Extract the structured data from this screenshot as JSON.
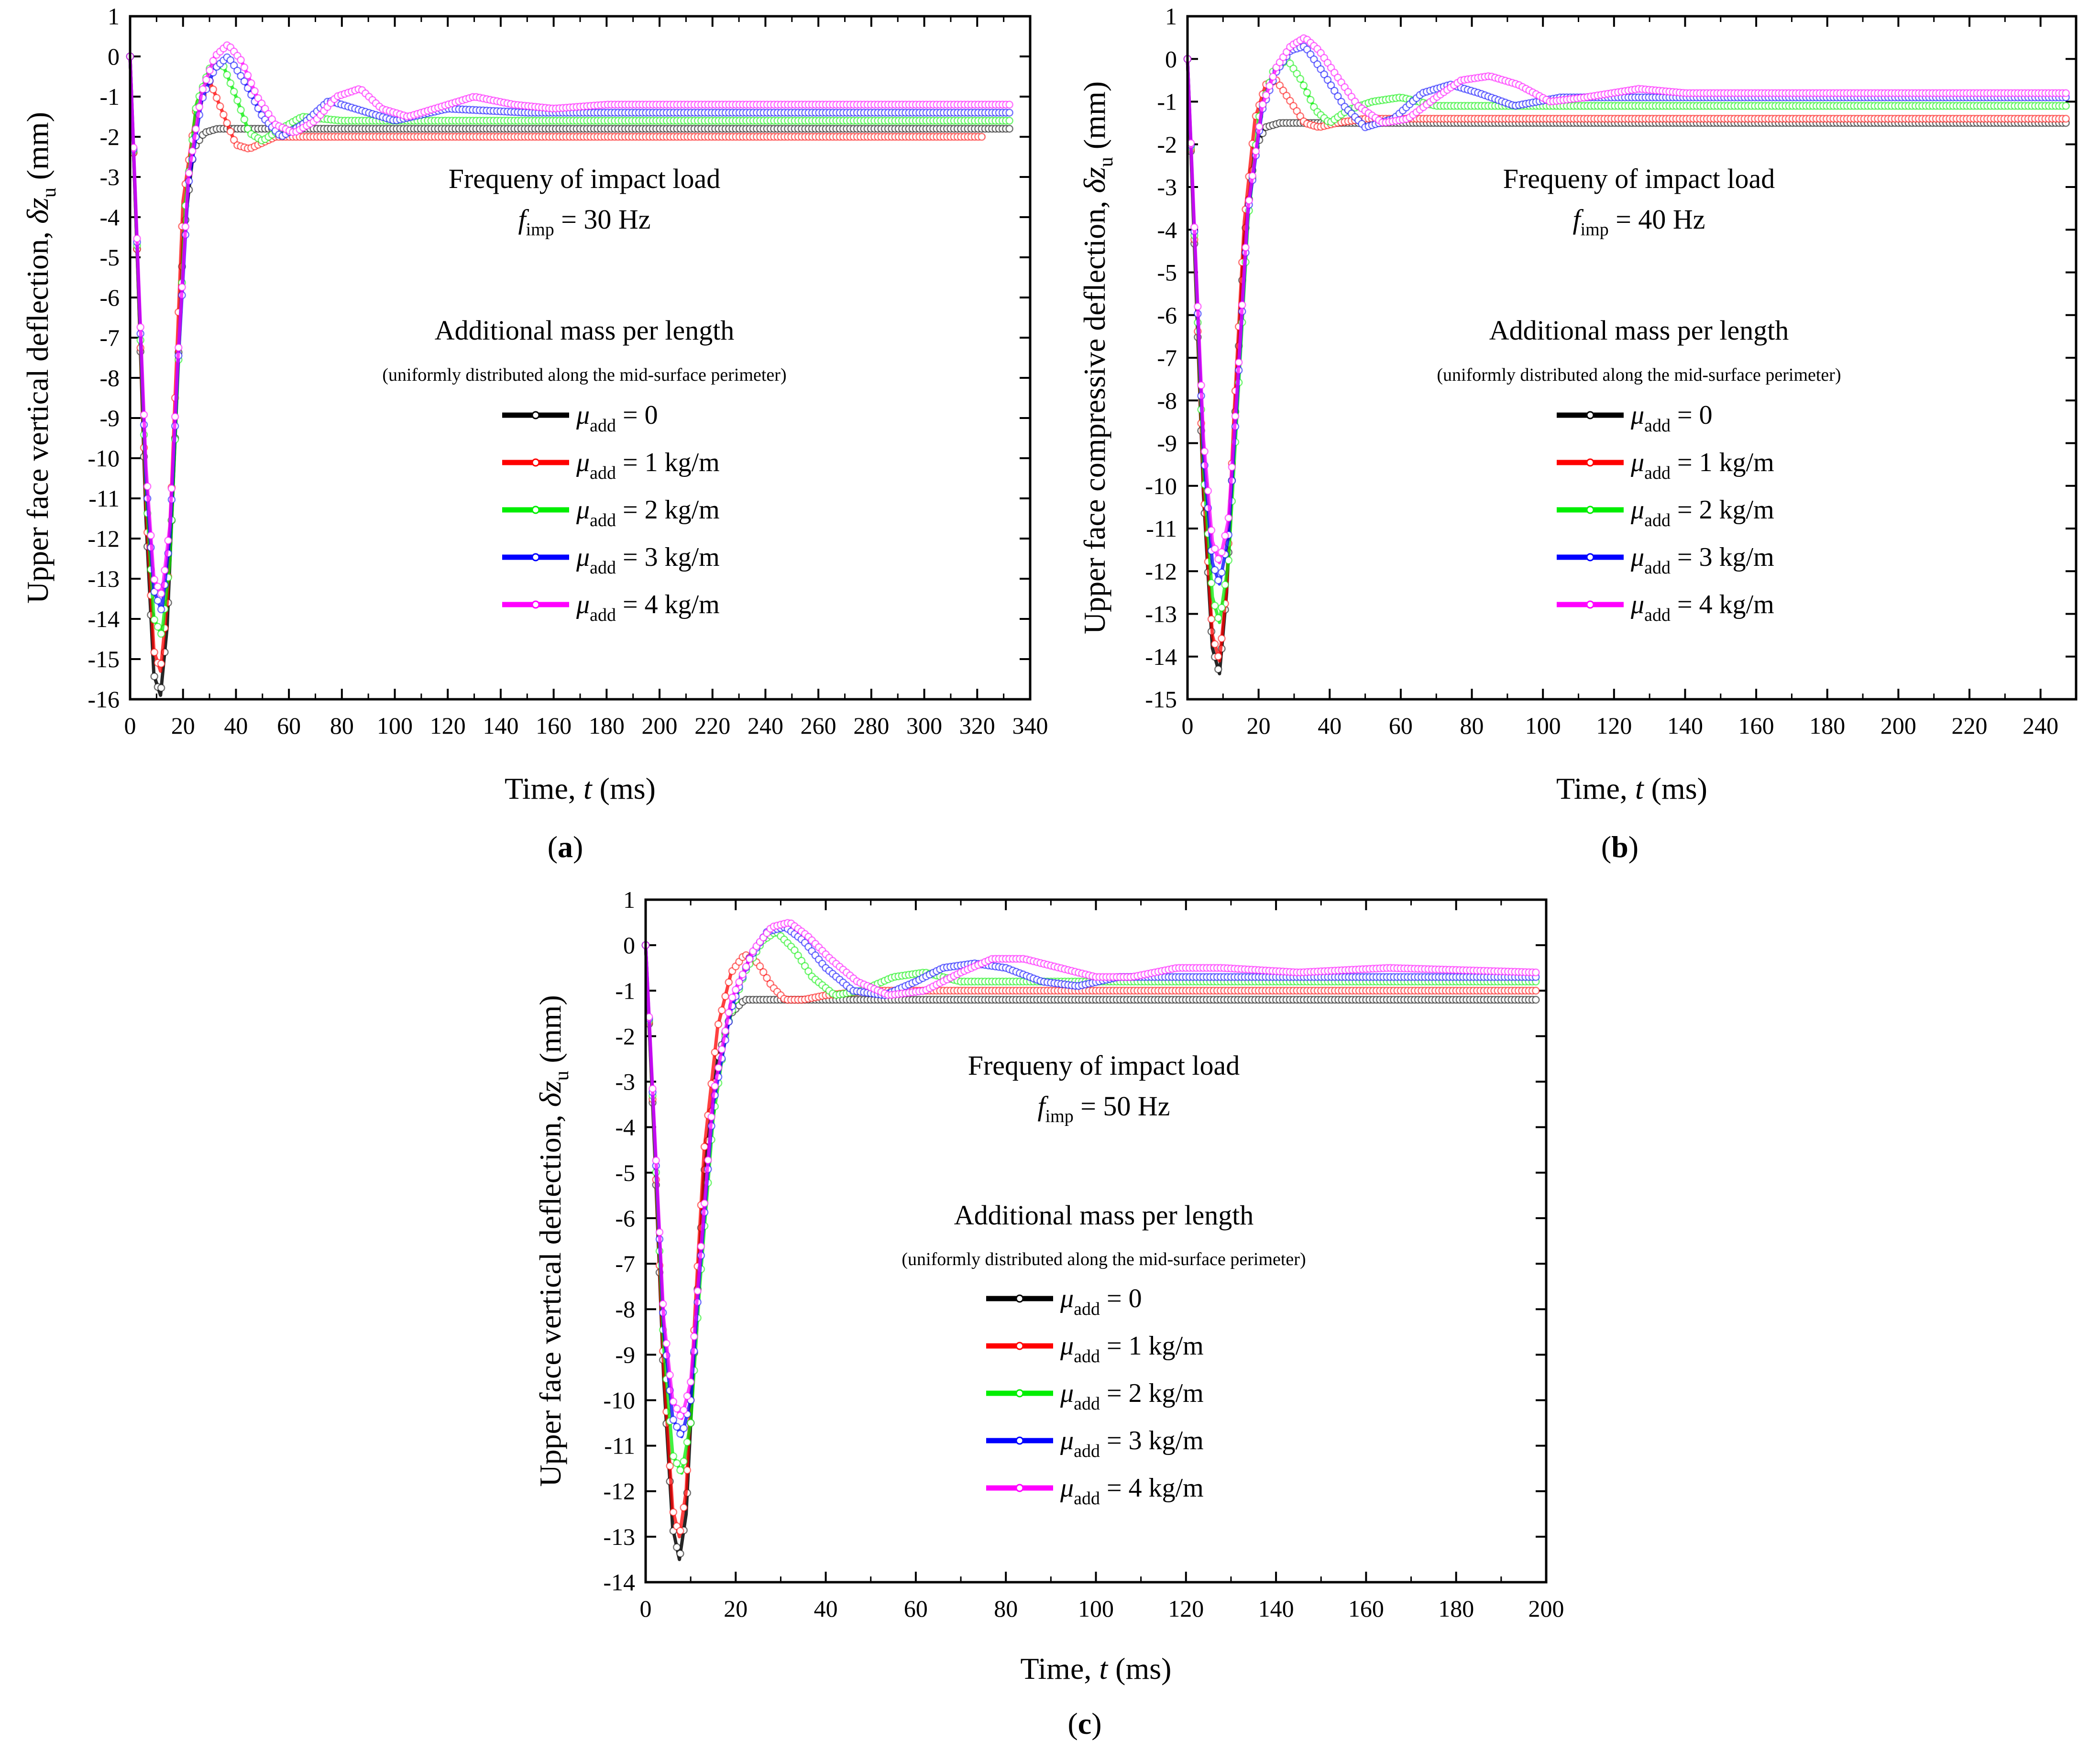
{
  "colors": {
    "mu0": "#000000",
    "mu1": "#ff0000",
    "mu2": "#00ee00",
    "mu3": "#0000ff",
    "mu4": "#ff00ff"
  },
  "chart_data": [
    {
      "type": "line",
      "panel_label": "(a)",
      "label_letter": "a",
      "title_line1": "Frequeny of impact load",
      "freq_prefix": "f",
      "freq_sub": "imp",
      "freq_value": "= 30 Hz",
      "legend_title": "Additional mass per length",
      "legend_subtitle": "(uniformly distributed along the mid-surface perimeter)",
      "xlabel_pre": "Time,",
      "xlabel_var": "t",
      "xlabel_unit": "(ms)",
      "ylabel_pre": "Upper face vertical deflection,",
      "ylabel_var": "δz",
      "ylabel_sub": "u",
      "ylabel_unit": "(mm)",
      "xlim": [
        0,
        340
      ],
      "ylim": [
        -16,
        1
      ],
      "xticks": [
        0,
        20,
        40,
        60,
        80,
        100,
        120,
        140,
        160,
        180,
        200,
        220,
        240,
        260,
        280,
        300,
        320,
        340
      ],
      "yticks": [
        1,
        0,
        -1,
        -2,
        -3,
        -4,
        -5,
        -6,
        -7,
        -8,
        -9,
        -10,
        -11,
        -12,
        -13,
        -14,
        -15,
        -16
      ],
      "series": [
        {
          "name": "μadd = 0",
          "mu_sym": "μ",
          "mu_sub": "add",
          "mu_text": "= 0",
          "x": [
            0,
            3,
            6,
            9,
            11.5,
            14,
            17,
            20,
            24,
            28,
            33,
            40,
            60,
            100,
            200,
            333
          ],
          "y": [
            0,
            -5.5,
            -11.5,
            -15.4,
            -15.9,
            -14.2,
            -9.5,
            -4.6,
            -2.3,
            -1.9,
            -1.8,
            -1.8,
            -1.8,
            -1.8,
            -1.8,
            -1.8
          ]
        },
        {
          "name": "μadd = 1 kg/m",
          "mu_sym": "μ",
          "mu_sub": "add",
          "mu_text": "= 1 kg/m",
          "x": [
            0,
            3,
            6,
            9,
            11.5,
            14,
            17,
            20,
            25,
            30,
            35,
            40,
            45,
            55,
            70,
            100,
            200,
            323
          ],
          "y": [
            0,
            -5.5,
            -11.2,
            -14.8,
            -15.3,
            -13.6,
            -8.5,
            -3.6,
            -1.3,
            -0.6,
            -1.4,
            -2.2,
            -2.3,
            -2.0,
            -2.0,
            -2.0,
            -2.0,
            -2.0
          ]
        },
        {
          "name": "μadd = 2 kg/m",
          "mu_sym": "μ",
          "mu_sub": "add",
          "mu_text": "= 2 kg/m",
          "x": [
            0,
            3,
            6,
            9,
            12,
            15,
            18,
            21,
            25,
            30,
            35,
            40,
            45,
            50,
            57,
            65,
            80,
            100,
            200,
            333
          ],
          "y": [
            0,
            -5.4,
            -10.8,
            -14.0,
            -14.4,
            -12.6,
            -8.0,
            -3.6,
            -1.2,
            -0.3,
            -0.2,
            -1.0,
            -1.9,
            -2.1,
            -1.8,
            -1.5,
            -1.6,
            -1.6,
            -1.6,
            -1.6
          ]
        },
        {
          "name": "μadd = 3 kg/m",
          "mu_sym": "μ",
          "mu_sub": "add",
          "mu_text": "= 3 kg/m",
          "x": [
            0,
            3,
            6,
            9,
            12,
            15,
            18,
            22,
            27,
            32,
            37,
            43,
            50,
            57,
            65,
            75,
            85,
            100,
            120,
            150,
            200,
            333
          ],
          "y": [
            0,
            -5.3,
            -10.5,
            -13.3,
            -13.8,
            -12.0,
            -7.8,
            -3.2,
            -1.1,
            -0.3,
            0.0,
            -0.6,
            -1.5,
            -2.0,
            -1.7,
            -1.1,
            -1.3,
            -1.6,
            -1.3,
            -1.4,
            -1.4,
            -1.4
          ]
        },
        {
          "name": "μadd = 4 kg/m",
          "mu_sym": "μ",
          "mu_sub": "add",
          "mu_text": "= 4 kg/m",
          "x": [
            0,
            3,
            6,
            9,
            12,
            15,
            18,
            22,
            27,
            32,
            37,
            42,
            48,
            55,
            62,
            70,
            78,
            87,
            95,
            105,
            115,
            130,
            145,
            160,
            180,
            200,
            333
          ],
          "y": [
            0,
            -5.2,
            -10.2,
            -13.0,
            -13.4,
            -11.7,
            -7.6,
            -3.0,
            -0.9,
            0.0,
            0.3,
            -0.1,
            -1.0,
            -1.7,
            -1.9,
            -1.6,
            -1.0,
            -0.8,
            -1.3,
            -1.5,
            -1.3,
            -1.0,
            -1.2,
            -1.3,
            -1.2,
            -1.2,
            -1.2
          ]
        }
      ]
    },
    {
      "type": "line",
      "panel_label": "(b)",
      "label_letter": "b",
      "title_line1": "Frequeny of impact load",
      "freq_prefix": "f",
      "freq_sub": "imp",
      "freq_value": "= 40 Hz",
      "legend_title": "Additional mass per length",
      "legend_subtitle": "(uniformly distributed along the mid-surface perimeter)",
      "xlabel_pre": "Time,",
      "xlabel_var": "t",
      "xlabel_unit": "(ms)",
      "ylabel_pre": "Upper face compressive deflection,",
      "ylabel_var": "δz",
      "ylabel_sub": "u",
      "ylabel_unit": "(mm)",
      "xlim": [
        0,
        250
      ],
      "ylim": [
        -15,
        1
      ],
      "xticks": [
        0,
        20,
        40,
        60,
        80,
        100,
        120,
        140,
        160,
        180,
        200,
        220,
        240
      ],
      "yticks": [
        1,
        0,
        -1,
        -2,
        -3,
        -4,
        -5,
        -6,
        -7,
        -8,
        -9,
        -10,
        -11,
        -12,
        -13,
        -14,
        -15
      ],
      "series": [
        {
          "name": "μadd = 0",
          "mu_sym": "μ",
          "mu_sub": "add",
          "mu_text": "= 0",
          "x": [
            0,
            2,
            4.5,
            7,
            9,
            11,
            13,
            16,
            19,
            22,
            26,
            30,
            40,
            100,
            200,
            248
          ],
          "y": [
            0,
            -4.5,
            -10.2,
            -13.8,
            -14.4,
            -12.5,
            -9.0,
            -4.2,
            -2.1,
            -1.6,
            -1.5,
            -1.5,
            -1.5,
            -1.5,
            -1.5,
            -1.5
          ]
        },
        {
          "name": "μadd = 1 kg/m",
          "mu_sym": "μ",
          "mu_sub": "add",
          "mu_text": "= 1 kg/m",
          "x": [
            0,
            2,
            4.5,
            7,
            9,
            11,
            13,
            16,
            19,
            22,
            25,
            29,
            33,
            37,
            42,
            50,
            70,
            100,
            200,
            248
          ],
          "y": [
            0,
            -4.4,
            -10.0,
            -13.5,
            -14.1,
            -12.4,
            -8.5,
            -3.8,
            -1.4,
            -0.6,
            -0.5,
            -1.0,
            -1.5,
            -1.6,
            -1.5,
            -1.4,
            -1.4,
            -1.4,
            -1.4,
            -1.4
          ]
        },
        {
          "name": "μadd = 2 kg/m",
          "mu_sym": "μ",
          "mu_sub": "add",
          "mu_text": "= 2 kg/m",
          "x": [
            0,
            2,
            4.5,
            7,
            9,
            11.5,
            14,
            17,
            20,
            24,
            28,
            32,
            36,
            40,
            45,
            52,
            60,
            70,
            85,
            100,
            200,
            248
          ],
          "y": [
            0,
            -4.3,
            -9.6,
            -12.6,
            -13.2,
            -11.8,
            -8.2,
            -3.8,
            -1.4,
            -0.3,
            0.0,
            -0.5,
            -1.2,
            -1.5,
            -1.2,
            -1.0,
            -0.9,
            -1.1,
            -1.1,
            -1.1,
            -1.1,
            -1.1
          ]
        },
        {
          "name": "μadd = 3 kg/m",
          "mu_sym": "μ",
          "mu_sub": "add",
          "mu_text": "= 3 kg/m",
          "x": [
            0,
            2,
            4.5,
            7,
            9,
            11.5,
            14,
            17,
            21,
            25,
            29,
            33,
            38,
            44,
            50,
            58,
            66,
            74,
            82,
            92,
            105,
            120,
            150,
            200,
            248
          ],
          "y": [
            0,
            -4.2,
            -9.2,
            -11.8,
            -12.3,
            -11.2,
            -7.9,
            -3.6,
            -1.2,
            -0.3,
            0.2,
            0.3,
            -0.3,
            -1.1,
            -1.6,
            -1.4,
            -0.8,
            -0.6,
            -0.8,
            -1.1,
            -0.9,
            -0.9,
            -0.9,
            -0.9,
            -0.9
          ]
        },
        {
          "name": "μadd = 4 kg/m",
          "mu_sym": "μ",
          "mu_sub": "add",
          "mu_text": "= 4 kg/m",
          "x": [
            0,
            2,
            4.5,
            7,
            9,
            11.5,
            14,
            17,
            21,
            25,
            29,
            33,
            37,
            42,
            48,
            55,
            62,
            70,
            77,
            85,
            93,
            102,
            112,
            127,
            140,
            160,
            200,
            248
          ],
          "y": [
            0,
            -4.1,
            -8.9,
            -11.3,
            -11.8,
            -10.8,
            -7.7,
            -3.5,
            -1.1,
            -0.2,
            0.3,
            0.5,
            0.2,
            -0.4,
            -1.1,
            -1.5,
            -1.4,
            -0.9,
            -0.5,
            -0.4,
            -0.6,
            -1.0,
            -0.9,
            -0.7,
            -0.8,
            -0.8,
            -0.8,
            -0.8
          ]
        }
      ]
    },
    {
      "type": "line",
      "panel_label": "(c)",
      "label_letter": "c",
      "title_line1": "Frequeny of impact load",
      "freq_prefix": "f",
      "freq_sub": "imp",
      "freq_value": "= 50 Hz",
      "legend_title": "Additional mass per length",
      "legend_subtitle": "(uniformly distributed along the mid-surface perimeter)",
      "xlabel_pre": "Time,",
      "xlabel_var": "t",
      "xlabel_unit": "(ms)",
      "ylabel_pre": "Upper face vertical deflection,",
      "ylabel_var": "δz",
      "ylabel_sub": "u",
      "ylabel_unit": "(mm)",
      "xlim": [
        0,
        200
      ],
      "ylim": [
        -14,
        1
      ],
      "xticks": [
        0,
        20,
        40,
        60,
        80,
        100,
        120,
        140,
        160,
        180,
        200
      ],
      "yticks": [
        1,
        0,
        -1,
        -2,
        -3,
        -4,
        -5,
        -6,
        -7,
        -8,
        -9,
        -10,
        -11,
        -12,
        -13,
        -14
      ],
      "series": [
        {
          "name": "μadd = 0",
          "mu_sym": "μ",
          "mu_sub": "add",
          "mu_text": "= 0",
          "x": [
            0,
            2,
            4,
            6,
            7.5,
            9,
            11,
            13,
            16,
            19,
            22,
            26,
            30,
            50,
            100,
            198
          ],
          "y": [
            0,
            -4.5,
            -9.5,
            -12.8,
            -13.5,
            -12.5,
            -8.5,
            -5.0,
            -2.5,
            -1.5,
            -1.2,
            -1.2,
            -1.2,
            -1.2,
            -1.2,
            -1.2
          ]
        },
        {
          "name": "μadd = 1 kg/m",
          "mu_sym": "μ",
          "mu_sub": "add",
          "mu_text": "= 1 kg/m",
          "x": [
            0,
            2,
            4,
            6,
            7.5,
            9,
            11,
            13,
            16,
            19,
            22,
            25,
            28,
            31,
            35,
            40,
            50,
            100,
            198
          ],
          "y": [
            0,
            -4.4,
            -9.3,
            -12.4,
            -13.0,
            -12.0,
            -8.0,
            -4.5,
            -1.8,
            -0.6,
            -0.2,
            -0.4,
            -0.9,
            -1.2,
            -1.2,
            -1.1,
            -1.0,
            -1.0,
            -1.0
          ]
        },
        {
          "name": "μadd = 2 kg/m",
          "mu_sym": "μ",
          "mu_sub": "add",
          "mu_text": "= 2 kg/m",
          "x": [
            0,
            2,
            4,
            6,
            8,
            10,
            12,
            15,
            18,
            22,
            26,
            29,
            33,
            37,
            42,
            48,
            55,
            62,
            70,
            85,
            100,
            198
          ],
          "y": [
            0,
            -4.3,
            -8.8,
            -11.2,
            -11.6,
            -10.5,
            -7.5,
            -3.8,
            -1.8,
            -0.6,
            0.1,
            0.3,
            -0.1,
            -0.7,
            -1.1,
            -1.0,
            -0.7,
            -0.6,
            -0.8,
            -0.8,
            -0.8,
            -0.8
          ]
        },
        {
          "name": "μadd = 3 kg/m",
          "mu_sym": "μ",
          "mu_sub": "add",
          "mu_text": "= 3 kg/m",
          "x": [
            0,
            2,
            4,
            6,
            8,
            10,
            12,
            15,
            19,
            23,
            27,
            31,
            35,
            40,
            46,
            53,
            60,
            66,
            73,
            80,
            88,
            96,
            105,
            120,
            150,
            198
          ],
          "y": [
            0,
            -4.2,
            -8.4,
            -10.4,
            -10.8,
            -10.0,
            -7.2,
            -3.5,
            -1.4,
            -0.3,
            0.3,
            0.4,
            0.1,
            -0.5,
            -1.0,
            -1.1,
            -0.8,
            -0.5,
            -0.4,
            -0.5,
            -0.8,
            -0.9,
            -0.7,
            -0.7,
            -0.7,
            -0.7
          ]
        },
        {
          "name": "μadd = 4 kg/m",
          "mu_sym": "μ",
          "mu_sub": "add",
          "mu_text": "= 4 kg/m",
          "x": [
            0,
            2,
            4,
            6,
            8,
            10,
            12,
            15,
            19,
            24,
            28,
            32,
            36,
            41,
            47,
            54,
            62,
            70,
            77,
            84,
            92,
            100,
            108,
            118,
            128,
            145,
            165,
            198
          ],
          "y": [
            0,
            -4.1,
            -8.2,
            -10.0,
            -10.4,
            -9.6,
            -7.0,
            -3.3,
            -1.2,
            -0.1,
            0.4,
            0.5,
            0.2,
            -0.3,
            -0.8,
            -1.1,
            -1.0,
            -0.6,
            -0.3,
            -0.3,
            -0.5,
            -0.7,
            -0.7,
            -0.5,
            -0.5,
            -0.6,
            -0.5,
            -0.6
          ]
        }
      ]
    }
  ]
}
